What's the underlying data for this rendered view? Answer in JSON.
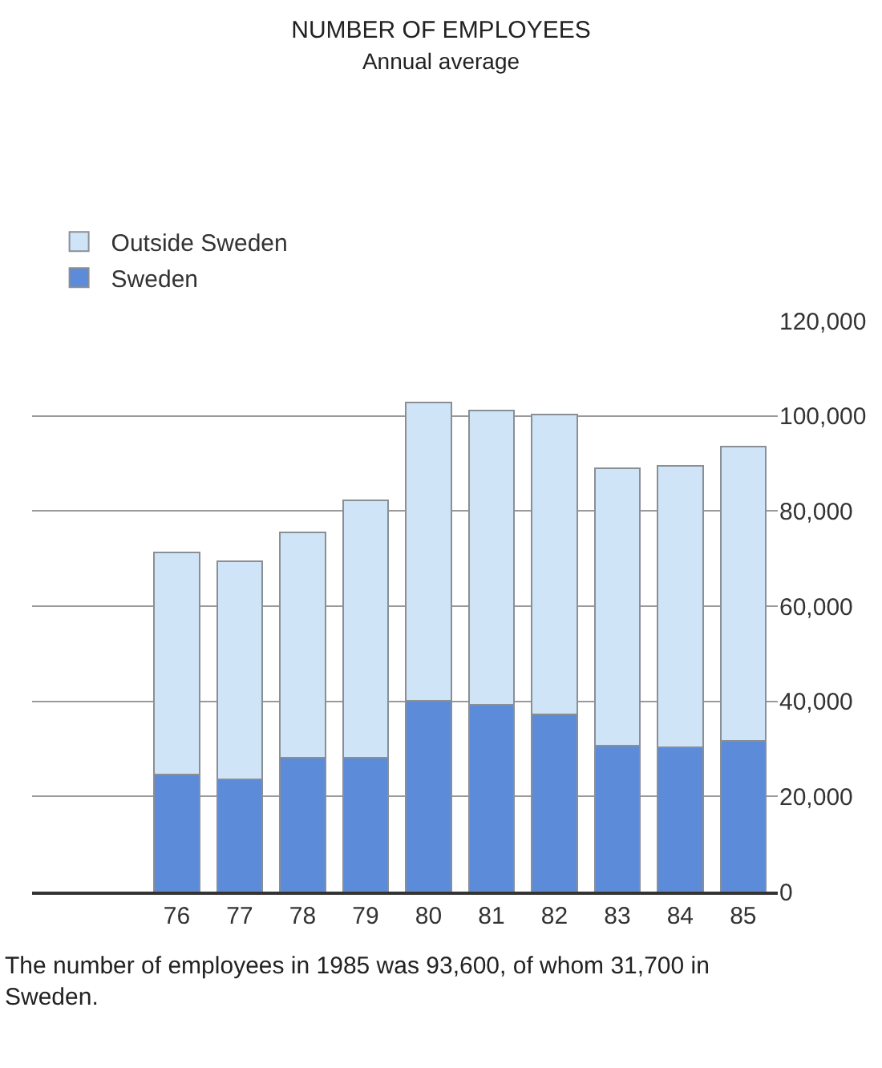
{
  "chart_data": {
    "type": "bar",
    "title": "NUMBER OF EMPLOYEES",
    "subtitle": "Annual average",
    "categories": [
      "76",
      "77",
      "78",
      "79",
      "80",
      "81",
      "82",
      "83",
      "84",
      "85"
    ],
    "stacked": true,
    "series": [
      {
        "name": "Sweden",
        "color": "#5b8bd9",
        "values": [
          24600,
          23600,
          28200,
          28200,
          40100,
          39200,
          37300,
          30700,
          30400,
          31700
        ]
      },
      {
        "name": "Outside Sweden",
        "color": "#cfe4f7",
        "values": [
          46700,
          45800,
          47300,
          54000,
          62700,
          62000,
          63000,
          58300,
          59100,
          61900
        ]
      }
    ],
    "ylim": [
      0,
      120000
    ],
    "yticks": [
      0,
      {
        "value": 20000,
        "label": "20,000"
      },
      {
        "value": 40000,
        "label": "40,000"
      },
      {
        "value": 60000,
        "label": "60,000"
      },
      {
        "value": 80000,
        "label": "80,000"
      },
      {
        "value": 100000,
        "label": "100,000"
      },
      {
        "value": 120000,
        "label": "120,000"
      }
    ],
    "grid": "y",
    "legend": "top left",
    "annotations": [
      "The number of employees in 1985 was 93,600, of whom 31,700 in Sweden."
    ]
  }
}
